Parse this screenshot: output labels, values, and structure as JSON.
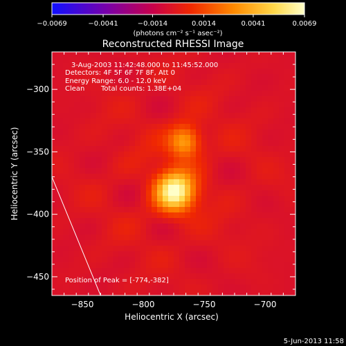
{
  "colorbar": {
    "ticks": [
      "-0.0069",
      "-0.0041",
      "-0.0014",
      "0.0014",
      "0.0041",
      "0.0069"
    ],
    "tick_values": [
      -0.0069,
      -0.0041,
      -0.0014,
      0.0014,
      0.0041,
      0.0069
    ],
    "range": [
      -0.0069,
      0.0069
    ],
    "units": "(photons cm⁻² s⁻¹ asec⁻²)",
    "colors": [
      "#1010ff",
      "#7a00a8",
      "#c8004a",
      "#f02800",
      "#ff8a00",
      "#ffd84a",
      "#ffffc8"
    ]
  },
  "chart_data": {
    "type": "heatmap",
    "title": "Reconstructed RHESSI Image",
    "xlabel": "Heliocentric X (arcsec)",
    "ylabel": "Heliocentric Y (arcsec)",
    "xlim": [
      -875,
      -675
    ],
    "ylim": [
      -465,
      -270
    ],
    "x_ticks": [
      -850,
      -800,
      -750,
      -700
    ],
    "y_ticks": [
      -300,
      -350,
      -400,
      -450
    ],
    "sources": [
      {
        "x": -774,
        "y": -382,
        "peak": 0.0069
      },
      {
        "x": -766,
        "y": -342,
        "peak": 0.0041
      }
    ],
    "peak_position": [
      -774,
      -382
    ],
    "limb_line": [
      [
        -875,
        -370
      ],
      [
        -835,
        -465
      ]
    ],
    "annotations": {
      "time": "3-Aug-2003 11:42:48.000 to 11:45:52.000",
      "detectors": "Detectors: 4F 5F 6F 7F 8F, Att 0",
      "energy": "Energy Range: 6.0 - 12.0 keV",
      "clean": "Clean",
      "counts": "Total counts: 1.38E+04",
      "peak": "Position of Peak = [-774,-382]"
    },
    "x_tick_labels": [
      "−850",
      "−800",
      "−750",
      "−700"
    ],
    "y_tick_labels": [
      "−300",
      "−350",
      "−400",
      "−450"
    ]
  },
  "footer": {
    "date": "5-Jun-2013 11:58"
  }
}
